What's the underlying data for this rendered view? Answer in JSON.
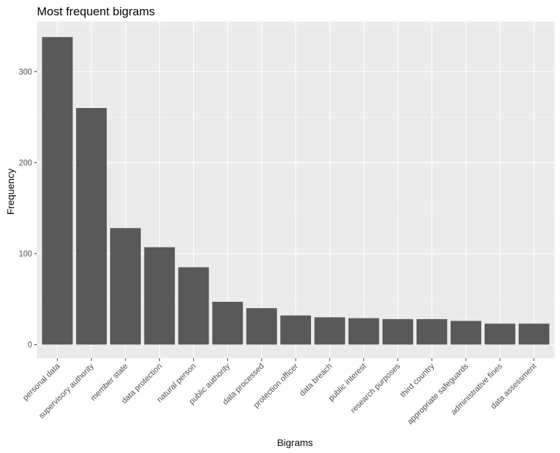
{
  "chart_data": {
    "type": "bar",
    "title": "Most frequent bigrams",
    "xlabel": "Bigrams",
    "ylabel": "Frequency",
    "categories": [
      "personal data",
      "supervisory authority",
      "member state",
      "data protection",
      "natural person",
      "public authority",
      "data processed",
      "protection officer",
      "data breach",
      "public interest",
      "research purposes",
      "third country",
      "appropriate safeguards",
      "administrative fines",
      "data assessment"
    ],
    "values": [
      338,
      260,
      128,
      107,
      85,
      47,
      40,
      32,
      30,
      29,
      28,
      28,
      26,
      23,
      23
    ],
    "ylim": [
      -15,
      355
    ],
    "yticks": [
      "0",
      "100",
      "200",
      "300"
    ],
    "grid": true,
    "legend": "none",
    "colors": {
      "bar": "#595959",
      "panel": "#ebebeb",
      "grid_major": "#ffffff",
      "grid_minor": "#f5f5f5"
    }
  }
}
